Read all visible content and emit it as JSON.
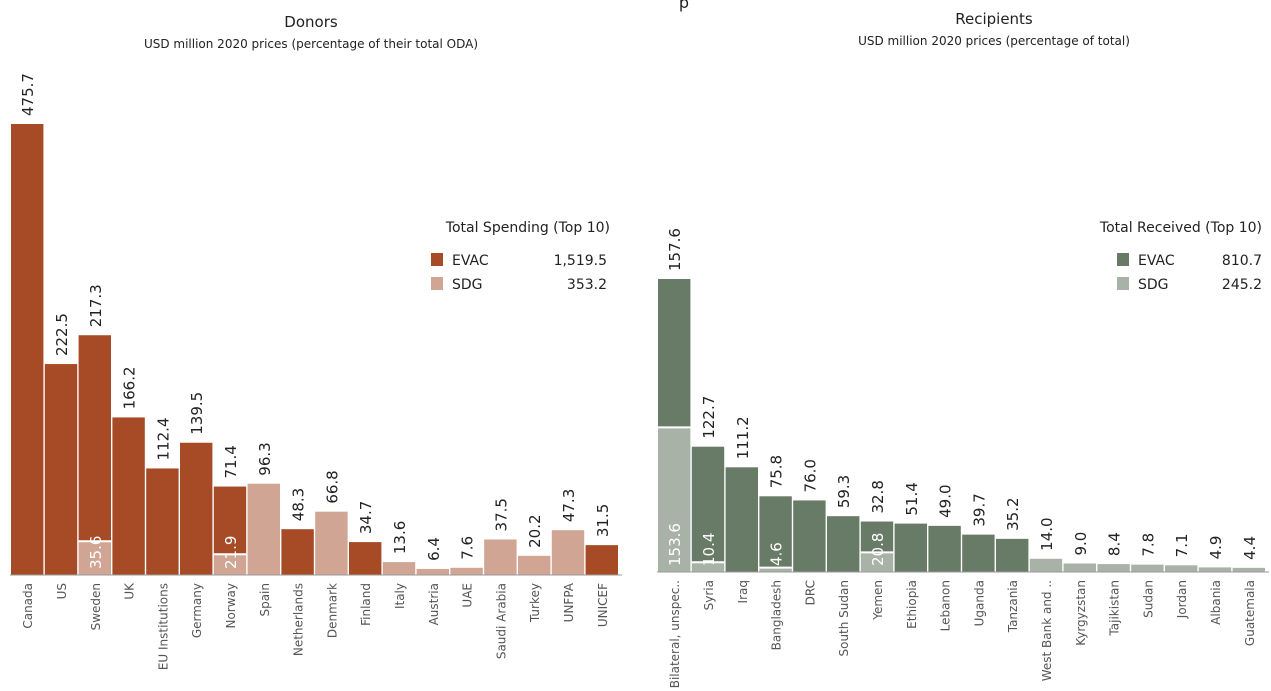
{
  "top_clip_text": "p",
  "chart_data": [
    {
      "type": "bar",
      "title": "Donors",
      "subtitle": "USD million 2020 prices (percentage of their total ODA)",
      "categories": [
        "Canada",
        "US",
        "Sweden",
        "UK",
        "EU Institutions",
        "Germany",
        "Norway",
        "Spain",
        "Netherlands",
        "Denmark",
        "Finland",
        "Italy",
        "Austria",
        "UAE",
        "Saudi Arabia",
        "Turkey",
        "UNFPA",
        "UNICEF"
      ],
      "series": [
        {
          "name": "EVAC",
          "values": [
            475.7,
            222.5,
            217.3,
            166.2,
            112.4,
            139.5,
            71.4,
            0,
            48.3,
            0,
            34.7,
            0,
            0,
            0,
            0,
            0,
            0,
            31.5
          ]
        },
        {
          "name": "SDG",
          "values": [
            0,
            0,
            35.6,
            0,
            0,
            0,
            21.9,
            96.3,
            0,
            66.8,
            0,
            13.6,
            6.4,
            7.6,
            37.5,
            20.2,
            47.3,
            0
          ]
        }
      ],
      "legend_title": "Total Spending (Top 10)",
      "legend": [
        {
          "name": "EVAC",
          "value": "1,519.5",
          "color": "#a64b26"
        },
        {
          "name": "SDG",
          "value": "353.2",
          "color": "#d0a594"
        }
      ],
      "colors": {
        "EVAC": "#a64b26",
        "SDG": "#d0a594"
      },
      "ylim": [
        0,
        475.7
      ],
      "legend_position": "top-right"
    },
    {
      "type": "bar",
      "title": "Recipients",
      "subtitle": "USD million 2020 prices (percentage of total)",
      "categories": [
        "Bilateral, unspec..",
        "Syria",
        "Iraq",
        "Bangladesh",
        "DRC",
        "South Sudan",
        "Yemen",
        "Ethiopia",
        "Lebanon",
        "Uganda",
        "Tanzania",
        "West Bank and ..",
        "Kyrgyzstan",
        "Tajikistan",
        "Sudan",
        "Jordan",
        "Albania",
        "Guatemala"
      ],
      "series": [
        {
          "name": "EVAC",
          "values": [
            157.6,
            122.7,
            111.2,
            75.8,
            76.0,
            59.3,
            32.8,
            51.4,
            49.0,
            39.7,
            35.2,
            0,
            0,
            0,
            0,
            0,
            0,
            0
          ]
        },
        {
          "name": "SDG",
          "values": [
            153.6,
            10.4,
            0,
            4.6,
            0,
            0,
            20.8,
            0,
            0,
            0,
            0,
            14.0,
            9.0,
            8.4,
            7.8,
            7.1,
            4.9,
            4.4
          ]
        }
      ],
      "legend_title": "Total Received (Top 10)",
      "legend": [
        {
          "name": "EVAC",
          "value": "810.7",
          "color": "#687b66"
        },
        {
          "name": "SDG",
          "value": "245.2",
          "color": "#a9b2a7"
        }
      ],
      "colors": {
        "EVAC": "#687b66",
        "SDG": "#a9b2a7"
      },
      "ylim": [
        0,
        311.2
      ],
      "legend_position": "top-right"
    }
  ]
}
